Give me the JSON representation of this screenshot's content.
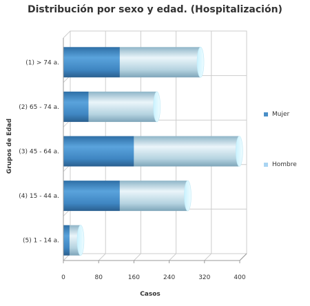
{
  "chart_data": {
    "type": "bar",
    "orientation": "horizontal",
    "stacked": true,
    "style": "3d-cylinder",
    "title": "Distribución por sexo y edad. (Hospitalización)",
    "xlabel": "Casos",
    "ylabel": "Grupos de Edad",
    "categories": [
      "(1) > 74 a.",
      "(2) 65 - 74 a.",
      "(3) 45 - 64 a.",
      "(4) 15 - 44 a.",
      "(5) 1 - 14 a."
    ],
    "series": [
      {
        "name": "Mujer",
        "values": [
          128,
          57,
          160,
          128,
          14
        ],
        "color": "#4a8fc7"
      },
      {
        "name": "Hombre",
        "values": [
          183,
          155,
          239,
          154,
          25
        ],
        "color": "#a9d4f2"
      }
    ],
    "xlim": [
      0,
      400
    ],
    "xticks": [
      0,
      80,
      160,
      240,
      320,
      400
    ],
    "grid": true,
    "legend_position": "right"
  }
}
